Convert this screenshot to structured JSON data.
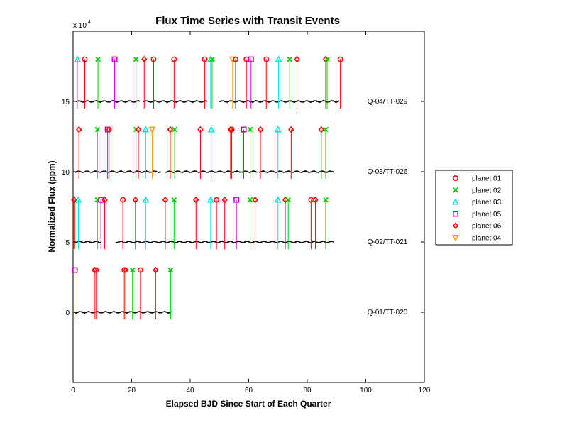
{
  "chart_data": {
    "type": "scatter",
    "title": "Flux Time Series with Transit Events",
    "xlabel": "Elapsed BJD Since Start of Each Quarter",
    "ylabel": "Normalized Flux (ppm)",
    "y_scale_text": "x 10",
    "y_scale_exponent": "4",
    "xlim": [
      0,
      120
    ],
    "ylim": [
      -5,
      20
    ],
    "x_ticks": [
      0,
      20,
      40,
      60,
      80,
      100,
      120
    ],
    "y_ticks": [
      0,
      5,
      10,
      15
    ],
    "grid": false,
    "legend_position": "right",
    "legend": [
      {
        "name": "planet 01",
        "color": "#ff0000",
        "marker": "circle"
      },
      {
        "name": "planet 02",
        "color": "#00cc00",
        "marker": "x"
      },
      {
        "name": "planet 03",
        "color": "#00e5e5",
        "marker": "triangle-up"
      },
      {
        "name": "planet 05",
        "color": "#cc00cc",
        "marker": "square"
      },
      {
        "name": "planet 06",
        "color": "#ff0000",
        "marker": "diamond"
      },
      {
        "name": "planet 04",
        "color": "#ff9900",
        "marker": "triangle-down"
      }
    ],
    "quarters": [
      {
        "label": "Q-01/TT-020",
        "baseline": 0,
        "marker_y": 3,
        "segments": [
          [
            0.3,
            33.8
          ]
        ],
        "events": [
          {
            "x": 0.6,
            "planet": "planet 05"
          },
          {
            "x": 7.3,
            "planet": "planet 06"
          },
          {
            "x": 7.8,
            "planet": "planet 01"
          },
          {
            "x": 17.5,
            "planet": "planet 01"
          },
          {
            "x": 18.0,
            "planet": "planet 06"
          },
          {
            "x": 20.3,
            "planet": "planet 02"
          },
          {
            "x": 23.0,
            "planet": "planet 01"
          },
          {
            "x": 28.2,
            "planet": "planet 06"
          },
          {
            "x": 33.3,
            "planet": "planet 02"
          }
        ]
      },
      {
        "label": "Q-02/TT-021",
        "baseline": 5,
        "marker_y": 8,
        "segments": [
          [
            0.3,
            9.5
          ],
          [
            14.5,
            89.0
          ]
        ],
        "events": [
          {
            "x": 0.3,
            "planet": "planet 06"
          },
          {
            "x": 1.8,
            "planet": "planet 03"
          },
          {
            "x": 8.3,
            "planet": "planet 02"
          },
          {
            "x": 9.5,
            "planet": "planet 05"
          },
          {
            "x": 10.8,
            "planet": "planet 06"
          },
          {
            "x": 17.0,
            "planet": "planet 01"
          },
          {
            "x": 21.3,
            "planet": "planet 06"
          },
          {
            "x": 24.8,
            "planet": "planet 03"
          },
          {
            "x": 31.5,
            "planet": "planet 06"
          },
          {
            "x": 34.5,
            "planet": "planet 02"
          },
          {
            "x": 42.0,
            "planet": "planet 06"
          },
          {
            "x": 47.0,
            "planet": "planet 03"
          },
          {
            "x": 49.0,
            "planet": "planet 01"
          },
          {
            "x": 51.8,
            "planet": "planet 06"
          },
          {
            "x": 55.8,
            "planet": "planet 05"
          },
          {
            "x": 60.5,
            "planet": "planet 02"
          },
          {
            "x": 62.2,
            "planet": "planet 06"
          },
          {
            "x": 70.0,
            "planet": "planet 03"
          },
          {
            "x": 72.5,
            "planet": "planet 06"
          },
          {
            "x": 73.5,
            "planet": "planet 02"
          },
          {
            "x": 81.3,
            "planet": "planet 01"
          },
          {
            "x": 82.8,
            "planet": "planet 06"
          },
          {
            "x": 86.3,
            "planet": "planet 02"
          }
        ]
      },
      {
        "label": "Q-03/TT-026",
        "baseline": 10,
        "marker_y": 13,
        "segments": [
          [
            0.5,
            30.0
          ],
          [
            31.5,
            63.0
          ],
          [
            63.5,
            89.0
          ]
        ],
        "events": [
          {
            "x": 2.0,
            "planet": "planet 06"
          },
          {
            "x": 8.3,
            "planet": "planet 02"
          },
          {
            "x": 11.8,
            "planet": "planet 05"
          },
          {
            "x": 12.3,
            "planet": "planet 06"
          },
          {
            "x": 21.5,
            "planet": "planet 02"
          },
          {
            "x": 22.3,
            "planet": "planet 06"
          },
          {
            "x": 24.8,
            "planet": "planet 03"
          },
          {
            "x": 27.0,
            "planet": "planet 04"
          },
          {
            "x": 33.2,
            "planet": "planet 06"
          },
          {
            "x": 34.7,
            "planet": "planet 02"
          },
          {
            "x": 43.5,
            "planet": "planet 06"
          },
          {
            "x": 47.2,
            "planet": "planet 03"
          },
          {
            "x": 53.8,
            "planet": "planet 06"
          },
          {
            "x": 54.2,
            "planet": "planet 01"
          },
          {
            "x": 58.3,
            "planet": "planet 05"
          },
          {
            "x": 60.5,
            "planet": "planet 02"
          },
          {
            "x": 64.0,
            "planet": "planet 06"
          },
          {
            "x": 70.0,
            "planet": "planet 03"
          },
          {
            "x": 74.5,
            "planet": "planet 06"
          },
          {
            "x": 84.8,
            "planet": "planet 06"
          },
          {
            "x": 86.3,
            "planet": "planet 02"
          }
        ]
      },
      {
        "label": "Q-04/TT-029",
        "baseline": 15,
        "marker_y": 18,
        "segments": [
          [
            1.0,
            23.0
          ],
          [
            24.0,
            46.0
          ],
          [
            50.0,
            91.0
          ]
        ],
        "events": [
          {
            "x": 1.5,
            "planet": "planet 03"
          },
          {
            "x": 4.0,
            "planet": "planet 01"
          },
          {
            "x": 8.5,
            "planet": "planet 02"
          },
          {
            "x": 14.2,
            "planet": "planet 05"
          },
          {
            "x": 21.5,
            "planet": "planet 02"
          },
          {
            "x": 24.3,
            "planet": "planet 06"
          },
          {
            "x": 27.5,
            "planet": "planet 01"
          },
          {
            "x": 34.5,
            "planet": "planet 01"
          },
          {
            "x": 45.0,
            "planet": "planet 01"
          },
          {
            "x": 47.0,
            "planet": "planet 03"
          },
          {
            "x": 47.5,
            "planet": "planet 02"
          },
          {
            "x": 54.5,
            "planet": "planet 04"
          },
          {
            "x": 55.5,
            "planet": "planet 01"
          },
          {
            "x": 59.2,
            "planet": "planet 01"
          },
          {
            "x": 60.8,
            "planet": "planet 05"
          },
          {
            "x": 66.0,
            "planet": "planet 01"
          },
          {
            "x": 70.2,
            "planet": "planet 03"
          },
          {
            "x": 74.0,
            "planet": "planet 02"
          },
          {
            "x": 76.5,
            "planet": "planet 06"
          },
          {
            "x": 86.3,
            "planet": "planet 06"
          },
          {
            "x": 86.8,
            "planet": "planet 02"
          },
          {
            "x": 91.3,
            "planet": "planet 01"
          }
        ]
      }
    ]
  }
}
